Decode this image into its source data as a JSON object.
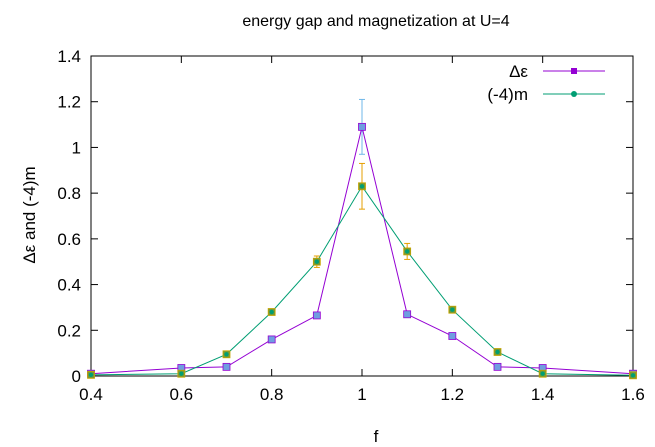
{
  "chart_data": {
    "type": "line",
    "title": "energy gap and magnetization at U=4",
    "xlabel": "f",
    "ylabel": "Δε and (-4)m",
    "xlim": [
      0.4,
      1.6
    ],
    "ylim": [
      0,
      1.4
    ],
    "xticks": [
      0.4,
      0.6,
      0.8,
      1.0,
      1.2,
      1.4,
      1.6
    ],
    "xtick_labels": [
      "0.4",
      "0.6",
      "0.8",
      "1",
      "1.2",
      "1.4",
      "1.6"
    ],
    "yticks": [
      0,
      0.2,
      0.4,
      0.6,
      0.8,
      1.0,
      1.2,
      1.4
    ],
    "ytick_labels": [
      "0",
      "0.2",
      "0.4",
      "0.6",
      "0.8",
      "1",
      "1.2",
      "1.4"
    ],
    "grid": false,
    "legend_position": "top-right",
    "series": [
      {
        "name": "Δε",
        "color": "#9400d3",
        "marker": "square",
        "marker_fill": "#6f9ee0",
        "x": [
          0.4,
          0.6,
          0.7,
          0.8,
          0.9,
          1.0,
          1.1,
          1.2,
          1.3,
          1.4,
          1.6
        ],
        "y": [
          0.01,
          0.035,
          0.04,
          0.16,
          0.265,
          1.09,
          0.27,
          0.175,
          0.04,
          0.035,
          0.01
        ],
        "err": [
          0,
          0,
          0,
          0,
          0,
          0.12,
          0,
          0,
          0,
          0,
          0
        ],
        "err_color": "#6fb7e8"
      },
      {
        "name": "(-4)m",
        "color": "#009e73",
        "marker": "circle",
        "marker_fill": "#7a9a30",
        "x": [
          0.4,
          0.6,
          0.7,
          0.8,
          0.9,
          1.0,
          1.1,
          1.2,
          1.3,
          1.4,
          1.6
        ],
        "y": [
          0.005,
          0.01,
          0.095,
          0.28,
          0.5,
          0.83,
          0.545,
          0.29,
          0.105,
          0.01,
          0.003
        ],
        "err": [
          0,
          0,
          0,
          0,
          0.025,
          0.1,
          0.035,
          0.01,
          0,
          0,
          0
        ],
        "err_color": "#e69f00"
      }
    ]
  }
}
